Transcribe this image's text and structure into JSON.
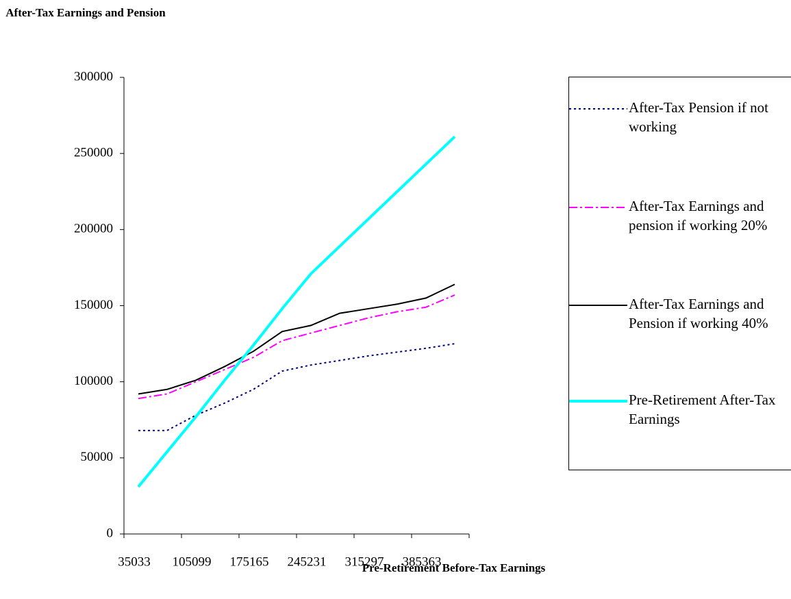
{
  "chart_data": {
    "type": "line",
    "y_label": "After-Tax Earnings and Pension",
    "x_label": "Pre-Retirement Before-Tax Earnings",
    "categories": [
      "35033",
      null,
      "105099",
      null,
      "175165",
      null,
      "245231",
      null,
      "315297",
      null,
      "385363",
      null
    ],
    "ylim": [
      0,
      300000
    ],
    "yticks": [
      0,
      50000,
      100000,
      150000,
      200000,
      250000,
      300000
    ],
    "grid": false,
    "legend": "right",
    "series": [
      {
        "name": "After-Tax Pension if not working",
        "color": "#000080",
        "line_style": "dotted",
        "line_width": 2,
        "values": [
          68000,
          68000,
          78000,
          86000,
          95000,
          107000,
          111000,
          114000,
          117000,
          119500,
          122000,
          125000
        ]
      },
      {
        "name": "After-Tax Earnings and pension if working 20%",
        "color": "#ff00ff",
        "line_style": "dashdot",
        "line_width": 2,
        "values": [
          89000,
          92000,
          100000,
          108000,
          116000,
          127000,
          132000,
          137000,
          142000,
          146000,
          149000,
          157000
        ]
      },
      {
        "name": "After-Tax Earnings and Pension if working 40%",
        "color": "#000000",
        "line_style": "solid",
        "line_width": 2,
        "values": [
          92000,
          95000,
          101000,
          110000,
          120000,
          133000,
          137000,
          145000,
          148000,
          151000,
          155000,
          164000
        ]
      },
      {
        "name": "Pre-Retirement After-Tax Earnings",
        "color": "#00ffff",
        "line_style": "solid",
        "line_width": 4,
        "values": [
          31000,
          54000,
          77000,
          101000,
          124000,
          148000,
          171000,
          189000,
          207000,
          225000,
          243000,
          261000
        ]
      }
    ]
  }
}
